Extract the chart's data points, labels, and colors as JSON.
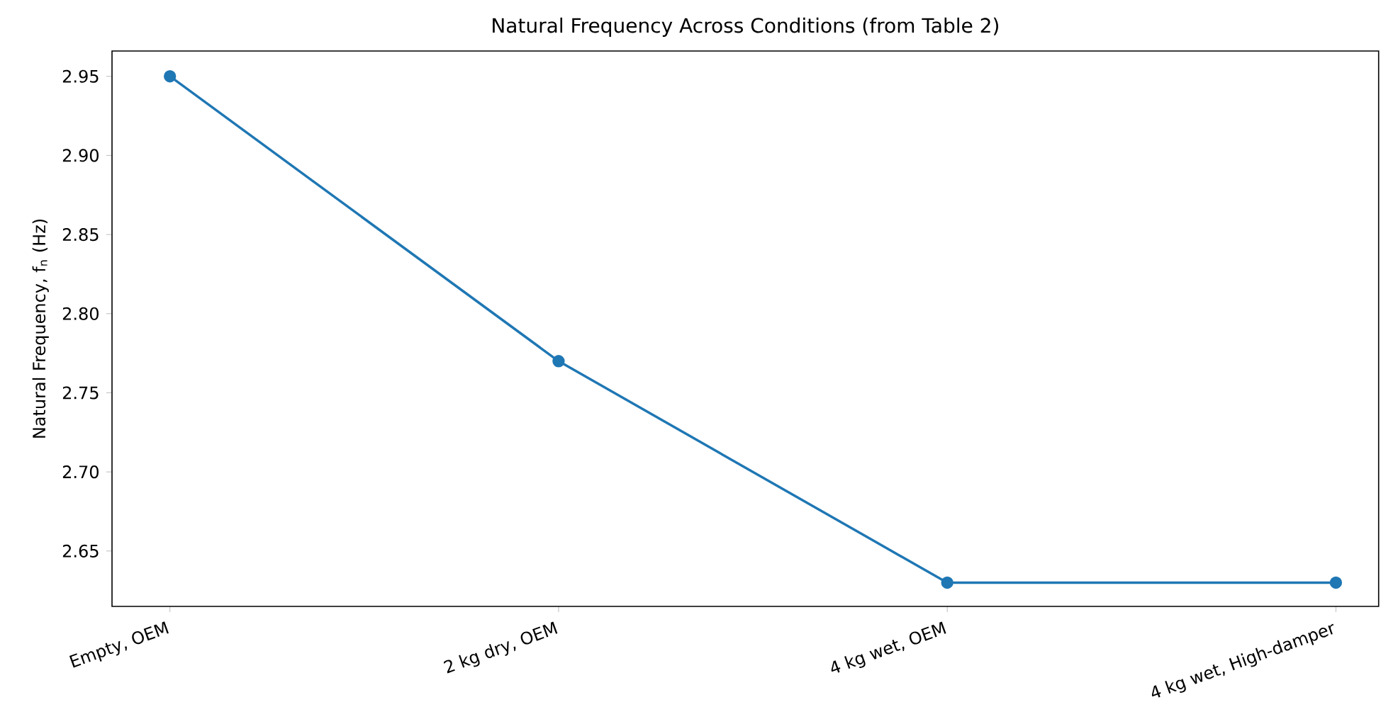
{
  "chart_data": {
    "type": "line",
    "title": "Natural Frequency Across Conditions (from Table 2)",
    "ylabel": "Natural Frequency, f$_{n}$ (Hz)",
    "categories": [
      "Empty, OEM",
      "2 kg dry, OEM",
      "4 kg wet, OEM",
      "4 kg wet, High-damper"
    ],
    "values": [
      2.95,
      2.77,
      2.63,
      2.63
    ],
    "color": "#1f77b4",
    "marker": "circle",
    "line_style": "solid",
    "ylim": [
      2.615,
      2.966
    ],
    "yticks": [
      2.65,
      {
        "value": 2.7,
        "label": "2.70"
      },
      2.75,
      {
        "value": 2.8,
        "label": "2.80"
      },
      2.85,
      {
        "value": 2.9,
        "label": "2.90"
      },
      2.95
    ]
  }
}
